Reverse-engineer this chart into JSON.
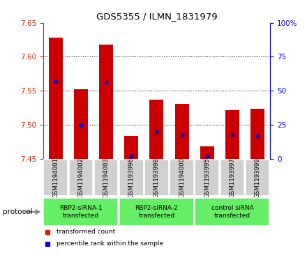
{
  "title": "GDS5355 / ILMN_1831979",
  "samples": [
    "GSM1194001",
    "GSM1194002",
    "GSM1194003",
    "GSM1193996",
    "GSM1193998",
    "GSM1194000",
    "GSM1193995",
    "GSM1193997",
    "GSM1193999"
  ],
  "transformed_counts": [
    7.628,
    7.552,
    7.618,
    7.484,
    7.537,
    7.531,
    7.468,
    7.521,
    7.524
  ],
  "percentile_ranks": [
    57,
    25,
    56,
    2,
    20,
    18,
    2,
    18,
    17
  ],
  "ylim": [
    7.45,
    7.65
  ],
  "yticks": [
    7.45,
    7.5,
    7.55,
    7.6,
    7.65
  ],
  "right_yticks": [
    0,
    25,
    50,
    75,
    100
  ],
  "groups": [
    {
      "label": "RBP2-siRNA-1\ntransfected",
      "indices": [
        0,
        1,
        2
      ]
    },
    {
      "label": "RBP2-siRNA-2\ntransfected",
      "indices": [
        3,
        4,
        5
      ]
    },
    {
      "label": "control siRNA\ntransfected",
      "indices": [
        6,
        7,
        8
      ]
    }
  ],
  "bar_color": "#CC0000",
  "dot_color": "#0000CC",
  "bar_width": 0.55,
  "bar_bottom": 7.45,
  "plot_bg_color": "#FFFFFF",
  "left_axis_color": "#CC2200",
  "right_axis_color": "#0000CC",
  "sample_box_color": "#D0D0D0",
  "group_box_color": "#66EE66",
  "protocol_label": "protocol",
  "legend_items": [
    {
      "label": "transformed count",
      "color": "#CC2200"
    },
    {
      "label": "percentile rank within the sample",
      "color": "#0000CC"
    }
  ]
}
